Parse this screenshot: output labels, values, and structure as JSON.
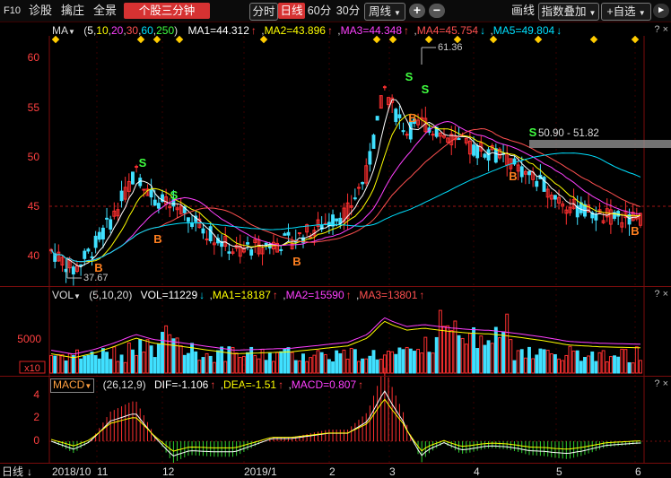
{
  "toolbar": {
    "f10": "F10",
    "diagnose": "诊股",
    "sniff": "擒庄",
    "full": "全景",
    "sanfen": "个股三分钟",
    "fenshi": "分时",
    "rixian": "日线",
    "m60": "60分",
    "m30": "30分",
    "zhouxian": "周线",
    "zoom_in": "+",
    "zoom_out": "−",
    "huaxian": "画线",
    "index_overlay": "指数叠加",
    "add_watch": "+自选",
    "colors": {
      "active": "#d63232"
    }
  },
  "ma_legend": {
    "name": "MA",
    "params_open": "(",
    "p5": "5",
    "p10": "10",
    "p20": "20",
    "p30": "30",
    "p60": "60",
    "p250": "250",
    "params_close": ")",
    "ma1": "MA1=44.312",
    "ma2": "MA2=43.896",
    "ma3": "MA3=44.348",
    "ma4": "MA4=45.754",
    "ma5": "MA5=49.804"
  },
  "price_axis": {
    "ticks": [
      "60",
      "55",
      "50",
      "45",
      "40"
    ]
  },
  "annotations": {
    "high": "61.36",
    "low": "37.67",
    "range": "50.90 - 51.82"
  },
  "signals": {
    "buy": "B",
    "sell": "S"
  },
  "vol_legend": {
    "name": "VOL",
    "params": "(5,10,20)",
    "vol": "VOL=11229",
    "ma1": "MA1=18187",
    "ma2": "MA2=15590",
    "ma3": "MA3=13801"
  },
  "vol_axis": {
    "ticks": [
      "5000"
    ],
    "unit": "x10"
  },
  "macd_legend": {
    "name": "MACD",
    "params": "(26,12,9)",
    "dif": "DIF=-1.106",
    "dea": "DEA=-1.51",
    "macd": "MACD=0.807"
  },
  "macd_axis": {
    "ticks": [
      "4",
      "2",
      "0"
    ]
  },
  "date_axis": {
    "period": "日线",
    "labels": [
      "2018/10",
      "11",
      "12",
      "2019/1",
      "2",
      "3",
      "4",
      "5",
      "6"
    ]
  },
  "panel_icons": {
    "help": "?",
    "close": "×"
  },
  "series_colors": {
    "ma1": "#ffffff",
    "ma2": "#ffff00",
    "ma3": "#ff40ff",
    "ma4": "#ff5050",
    "ma5": "#00e0ff",
    "up": "#ff3030",
    "down": "#40e0ff"
  }
}
